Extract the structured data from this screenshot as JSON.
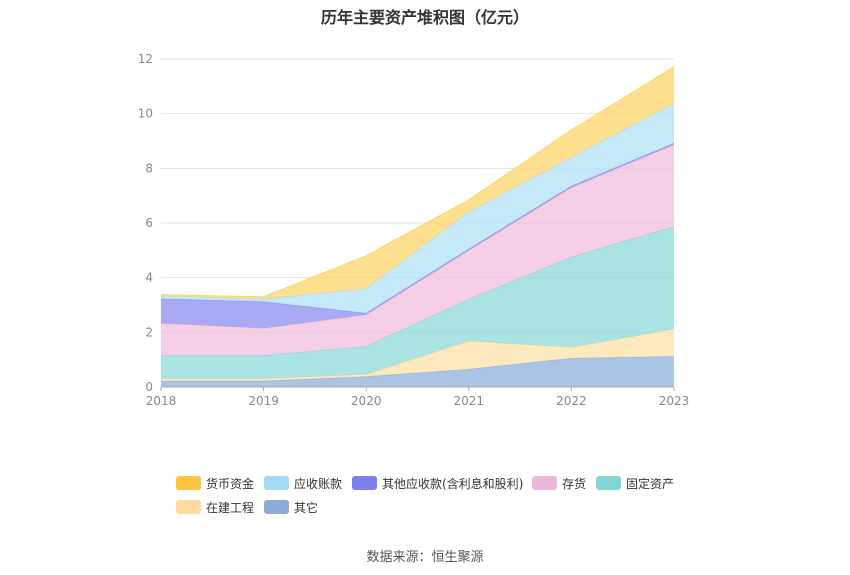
{
  "chart_data": {
    "type": "area",
    "stacked": true,
    "title": "历年主要资产堆积图（亿元）",
    "categories": [
      "2018",
      "2019",
      "2020",
      "2021",
      "2022",
      "2023"
    ],
    "ylim": [
      0,
      12
    ],
    "yticks": [
      0,
      2,
      4,
      6,
      8,
      10,
      12
    ],
    "grid": true,
    "legend_position": "bottom",
    "series": [
      {
        "name": "其它",
        "color": "#8eb0dd",
        "values": [
          0.22,
          0.22,
          0.38,
          0.65,
          1.05,
          1.12
        ]
      },
      {
        "name": "在建工程",
        "color": "#fde0a8",
        "values": [
          0.08,
          0.08,
          0.08,
          1.03,
          0.4,
          1.0
        ]
      },
      {
        "name": "固定资产",
        "color": "#8cdbd8",
        "values": [
          0.85,
          0.85,
          1.02,
          1.52,
          3.3,
          3.75
        ]
      },
      {
        "name": "存货",
        "color": "#efbedb",
        "values": [
          1.18,
          1.0,
          1.17,
          1.8,
          2.55,
          3.0
        ]
      },
      {
        "name": "其他应收款(含利息和股利)",
        "color": "#8c8ef0",
        "values": [
          0.9,
          0.97,
          0.05,
          0.05,
          0.05,
          0.05
        ]
      },
      {
        "name": "应收账款",
        "color": "#b3e1f8",
        "values": [
          0.1,
          0.1,
          0.9,
          1.35,
          1.05,
          1.45
        ]
      },
      {
        "name": "货币资金",
        "color": "#fdd36a",
        "values": [
          0.05,
          0.08,
          1.2,
          0.45,
          1.0,
          1.35
        ]
      }
    ],
    "legend_order": [
      "货币资金",
      "应收账款",
      "其他应收款(含利息和股利)",
      "存货",
      "固定资产",
      "在建工程",
      "其它"
    ]
  },
  "source_text": "数据来源：恒生聚源"
}
